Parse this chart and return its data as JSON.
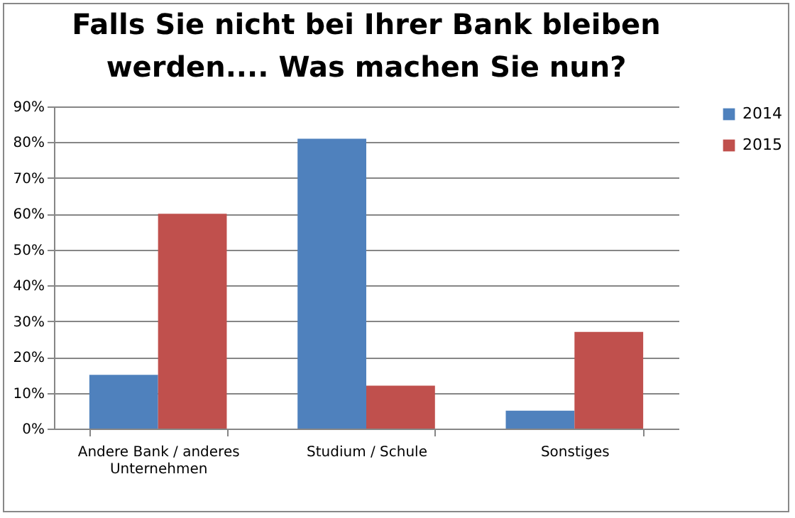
{
  "chart_data": {
    "type": "bar",
    "title": "Falls Sie nicht bei Ihrer Bank bleiben werden.... Was machen Sie nun?",
    "categories": [
      "Andere Bank / anderes Unternehmen",
      "Studium / Schule",
      "Sonstiges"
    ],
    "series": [
      {
        "name": "2014",
        "color": "#4f81bd",
        "values": [
          15,
          81,
          5
        ]
      },
      {
        "name": "2015",
        "color": "#c0504d",
        "values": [
          60,
          12,
          27
        ]
      }
    ],
    "ylim": [
      0,
      90
    ],
    "yticks": [
      {
        "value": 0,
        "label": "0%"
      },
      {
        "value": 10,
        "label": "10%"
      },
      {
        "value": 20,
        "label": "20%"
      },
      {
        "value": 30,
        "label": "30%"
      },
      {
        "value": 40,
        "label": "40%"
      },
      {
        "value": 50,
        "label": "50%"
      },
      {
        "value": 60,
        "label": "60%"
      },
      {
        "value": 70,
        "label": "70%"
      },
      {
        "value": 80,
        "label": "80%"
      },
      {
        "value": 90,
        "label": "90%"
      }
    ],
    "grid": "y",
    "legend": "right"
  }
}
